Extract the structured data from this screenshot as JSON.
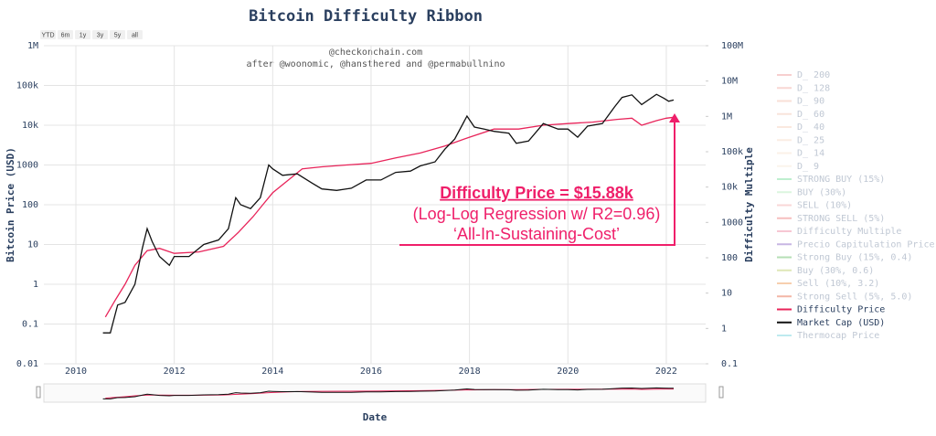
{
  "chart_data": {
    "type": "line",
    "title": "Bitcoin Difficulty Ribbon",
    "subtitle": [
      "@checkonchain.com",
      "after @woonomic, @hansthered and @permabullnino"
    ],
    "range_buttons": [
      "YTD",
      "6m",
      "1y",
      "3y",
      "5y",
      "all"
    ],
    "x_label": "Date",
    "y_label": "Bitcoin Price (USD)",
    "y2_label": "Difficulty Multiple",
    "log_y": true,
    "log_y2": true,
    "grid": true,
    "legend_position": "right",
    "xlim": [
      2009.35,
      2022.8
    ],
    "xticks": [
      2010,
      2012,
      2014,
      2016,
      2018,
      2020,
      2022
    ],
    "ylim": [
      0.01,
      1000000
    ],
    "yticks": [
      0.01,
      0.1,
      1,
      10,
      100,
      1000,
      {
        "value": 10000,
        "label": "10k"
      },
      {
        "value": 100000,
        "label": "100k"
      },
      {
        "value": 1000000,
        "label": "1M"
      }
    ],
    "y2lim": [
      0.1,
      100000000
    ],
    "y2ticks": [
      0.1,
      1,
      10,
      100,
      1000,
      {
        "value": 10000,
        "label": "10k"
      },
      {
        "value": 100000,
        "label": "100k"
      },
      {
        "value": 1000000,
        "label": "1M"
      },
      {
        "value": 10000000,
        "label": "10M"
      },
      {
        "value": 100000000,
        "label": "100M"
      }
    ],
    "annotation": {
      "title": "Difficulty Price = $15.88k",
      "lines": [
        "(Log-Log Regression w/ R2=0.96)",
        "‘All-In-Sustaining-Cost’"
      ],
      "color": "#ef1f6a"
    },
    "series": [
      {
        "name": "D_ 200",
        "color": "#f0a0a0",
        "visible": false
      },
      {
        "name": "D_ 128",
        "color": "#f2b0a8",
        "visible": false
      },
      {
        "name": "D_ 90",
        "color": "#f4c0b0",
        "visible": false
      },
      {
        "name": "D_ 60",
        "color": "#f4cab8",
        "visible": false
      },
      {
        "name": "D_ 40",
        "color": "#f6d4c0",
        "visible": false
      },
      {
        "name": "D_ 25",
        "color": "#f6dcc8",
        "visible": false
      },
      {
        "name": "D_ 14",
        "color": "#f8e4d0",
        "visible": false
      },
      {
        "name": "D_ 9",
        "color": "#f8ead8",
        "visible": false
      },
      {
        "name": "STRONG BUY (15%)",
        "color": "#7fe0a0",
        "visible": false
      },
      {
        "name": "BUY (30%)",
        "color": "#b8ecc0",
        "visible": false
      },
      {
        "name": "SELL (10%)",
        "color": "#f4b0b0",
        "visible": false
      },
      {
        "name": "STRONG SELL (5%)",
        "color": "#ee8080",
        "visible": false
      },
      {
        "name": "Difficulty Multiple",
        "color": "#f090a8",
        "visible": false
      },
      {
        "name": "Precio Capitulation Price",
        "color": "#9070c8",
        "visible": false
      },
      {
        "name": "Strong Buy (15%, 0.4)",
        "color": "#70c070",
        "visible": false
      },
      {
        "name": "Buy (30%, 0.6)",
        "color": "#c0d070",
        "visible": false
      },
      {
        "name": "Sell (10%, 3.2)",
        "color": "#f0a060",
        "visible": false
      },
      {
        "name": "Strong Sell (5%, 5.0)",
        "color": "#e87050",
        "visible": false
      },
      {
        "name": "Difficulty Price",
        "color": "#e8245a",
        "visible": true,
        "x": [
          2010.6,
          2010.8,
          2011.0,
          2011.2,
          2011.45,
          2011.7,
          2012.0,
          2012.5,
          2013.0,
          2013.3,
          2013.6,
          2013.8,
          2014.0,
          2014.3,
          2014.6,
          2015.0,
          2015.5,
          2016.0,
          2016.5,
          2017.0,
          2017.5,
          2018.0,
          2018.5,
          2019.0,
          2019.5,
          2020.0,
          2020.5,
          2021.0,
          2021.3,
          2021.5,
          2021.8,
          2022.0,
          2022.15
        ],
        "values": [
          0.15,
          0.4,
          1,
          3,
          7,
          8,
          6,
          6.5,
          9,
          20,
          50,
          100,
          200,
          400,
          800,
          900,
          1000,
          1100,
          1500,
          2000,
          3000,
          5000,
          8000,
          8000,
          10000,
          11000,
          12000,
          14000,
          15000,
          10000,
          13000,
          15000,
          15880
        ]
      },
      {
        "name": "Market Cap (USD)",
        "color": "#111111",
        "visible": true,
        "x": [
          2010.55,
          2010.7,
          2010.85,
          2011.0,
          2011.2,
          2011.35,
          2011.45,
          2011.55,
          2011.7,
          2011.9,
          2012.0,
          2012.3,
          2012.6,
          2012.9,
          2013.1,
          2013.25,
          2013.35,
          2013.55,
          2013.75,
          2013.92,
          2014.0,
          2014.2,
          2014.5,
          2014.8,
          2015.0,
          2015.3,
          2015.6,
          2015.9,
          2016.2,
          2016.5,
          2016.8,
          2017.0,
          2017.3,
          2017.5,
          2017.7,
          2017.95,
          2018.1,
          2018.3,
          2018.5,
          2018.8,
          2018.95,
          2019.2,
          2019.5,
          2019.8,
          2020.0,
          2020.2,
          2020.4,
          2020.7,
          2020.95,
          2021.1,
          2021.3,
          2021.5,
          2021.8,
          2021.95,
          2022.05,
          2022.15
        ],
        "values": [
          0.06,
          0.06,
          0.3,
          0.35,
          1,
          8,
          25,
          12,
          5,
          3,
          5,
          5,
          10,
          13,
          25,
          150,
          100,
          80,
          150,
          1000,
          800,
          550,
          600,
          350,
          250,
          230,
          260,
          420,
          420,
          650,
          700,
          950,
          1200,
          2500,
          4500,
          17000,
          9000,
          8000,
          7000,
          6300,
          3500,
          4000,
          11000,
          8000,
          8000,
          5000,
          9500,
          11000,
          29000,
          50000,
          58000,
          33000,
          60000,
          48000,
          40000,
          43000
        ]
      },
      {
        "name": "Thermocap Price",
        "color": "#7fd6e0",
        "visible": false
      }
    ]
  }
}
